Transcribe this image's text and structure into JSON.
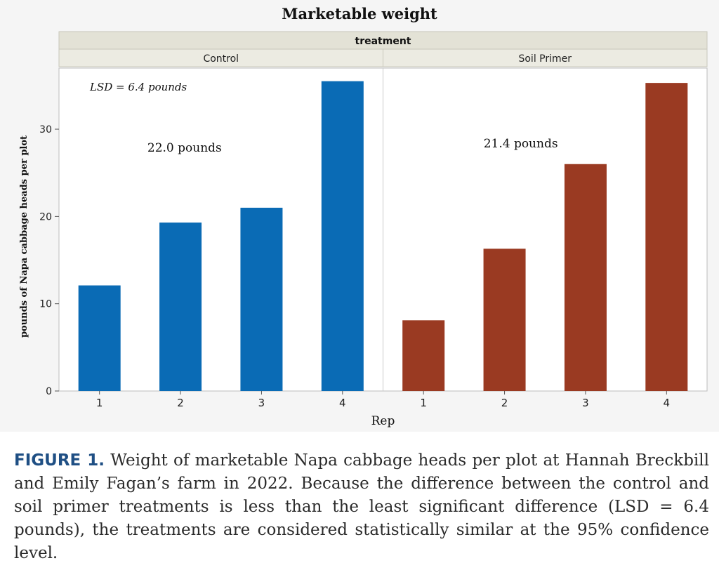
{
  "chart_data": {
    "type": "bar",
    "title": "Marketable weight",
    "group_header": "treatment",
    "ylabel": "pounds of Napa cabbage heads per plot",
    "xlabel": "Rep",
    "ylim": [
      0,
      37
    ],
    "yticks": [
      0,
      10,
      20,
      30
    ],
    "grid": false,
    "annotation": "LSD = 6.4 pounds",
    "panels": [
      {
        "name": "Control",
        "color": "#0a6bb5",
        "categories": [
          "1",
          "2",
          "3",
          "4"
        ],
        "values": [
          12.1,
          19.3,
          21.0,
          35.5
        ],
        "mean_label": "22.0 pounds"
      },
      {
        "name": "Soil Primer",
        "color": "#9a3a22",
        "categories": [
          "1",
          "2",
          "3",
          "4"
        ],
        "values": [
          8.1,
          16.3,
          26.0,
          35.3
        ],
        "mean_label": "21.4 pounds"
      }
    ]
  },
  "caption": {
    "label": "FIGURE 1.",
    "text": "Weight of marketable Napa cabbage heads per plot at Hannah Breckbill and Emily Fagan’s farm in 2022. Because the difference between the control and soil primer treatments is less than the least significant difference (LSD = 6.4 pounds), the treatments are considered statistically similar at the 95% confidence level."
  }
}
